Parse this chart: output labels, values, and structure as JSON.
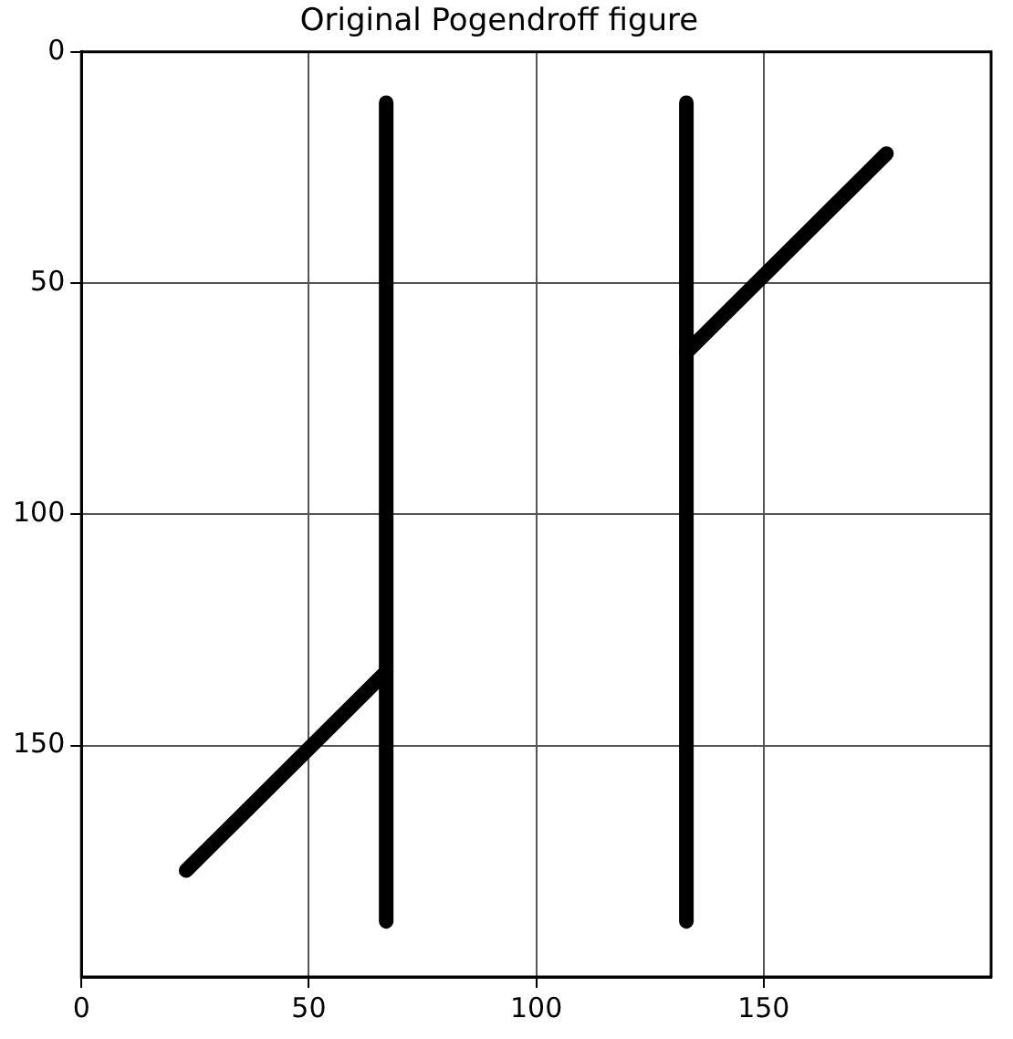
{
  "chart_data": {
    "type": "line",
    "title": "Original Pogendroff figure",
    "series": [
      {
        "color": "#000000",
        "x": [
          67,
          67
        ],
        "values": [
          11,
          188
        ]
      },
      {
        "color": "#000000",
        "x": [
          133,
          133
        ],
        "values": [
          11,
          188
        ]
      },
      {
        "color": "#000000",
        "x": [
          23,
          67
        ],
        "values": [
          177,
          134
        ]
      },
      {
        "color": "#000000",
        "x": [
          133,
          177
        ],
        "values": [
          65,
          22
        ]
      }
    ],
    "xlim": [
      0,
      200
    ],
    "xticks": [
      0,
      50,
      100,
      150
    ],
    "ylim": [
      200,
      0
    ],
    "yticks": [
      0,
      50,
      100,
      150
    ],
    "grid": true,
    "line_style": "solid",
    "marker": "none",
    "legend": false
  }
}
